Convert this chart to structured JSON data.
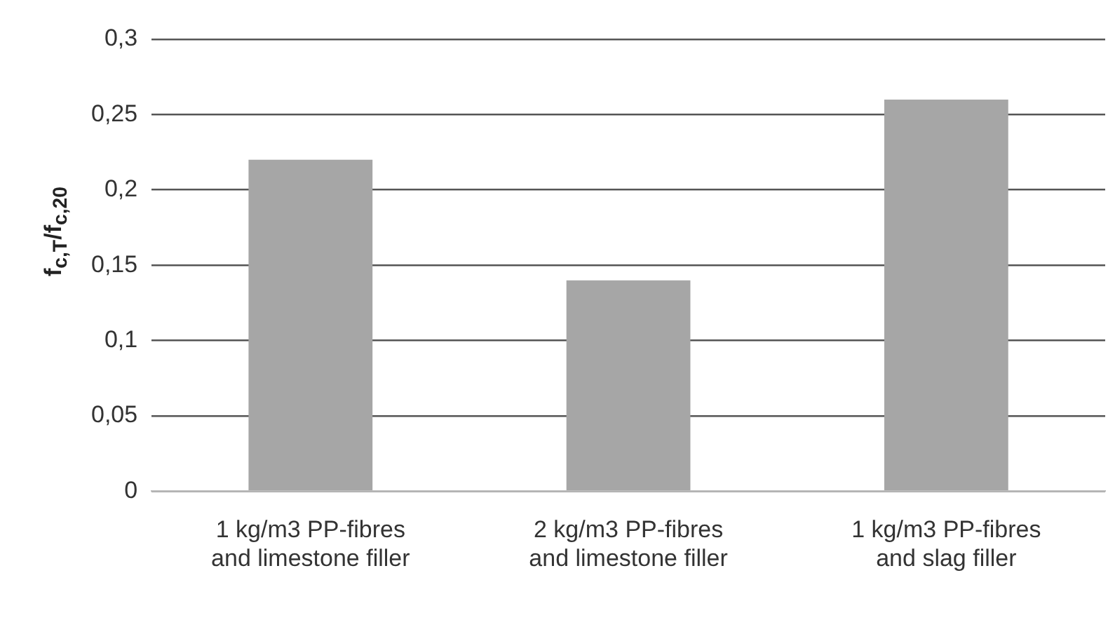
{
  "chart_data": {
    "type": "bar",
    "ylabel": "f$_{c,T}$/f$_{c,20}$",
    "categories": [
      "1 kg/m3 PP-fibres and limestone filler",
      "2 kg/m3 PP-fibres and limestone filler",
      "1 kg/m3 PP-fibres and slag filler"
    ],
    "values": [
      0.22,
      0.14,
      0.26
    ],
    "color": "#a6a6a6",
    "ylim": [
      0,
      0.3
    ],
    "yticks": [
      0,
      {
        "value": 0.05,
        "label": "0,05"
      },
      {
        "value": 0.1,
        "label": "0,1"
      },
      {
        "value": 0.15,
        "label": "0,15"
      },
      {
        "value": 0.2,
        "label": "0,2"
      },
      {
        "value": 0.25,
        "label": "0,25"
      },
      {
        "value": 0.3,
        "label": "0,3"
      }
    ],
    "grid": "y"
  }
}
